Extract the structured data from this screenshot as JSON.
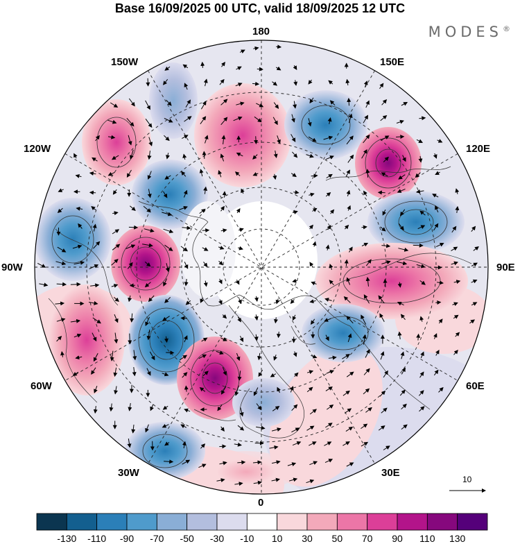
{
  "title": "Base 16/09/2025 00 UTC, valid 18/09/2025 12 UTC",
  "brand": "MODES",
  "brand_mark": "®",
  "meridian_labels": {
    "lon_180": "180",
    "lon_150w": "150W",
    "lon_150e": "150E",
    "lon_120w": "120W",
    "lon_120e": "120E",
    "lon_90w": "90W",
    "lon_90e": "90E",
    "lon_60w": "60W",
    "lon_60e": "60E",
    "lon_30w": "30W",
    "lon_30e": "30E",
    "lon_0": "0"
  },
  "reference_vector": {
    "value": "10"
  },
  "colorbar": {
    "ticks": [
      "-130",
      "-110",
      "-90",
      "-70",
      "-50",
      "-30",
      "-10",
      "10",
      "30",
      "50",
      "70",
      "90",
      "110",
      "130"
    ],
    "colors": [
      "#0b3550",
      "#135f8f",
      "#2b7fb8",
      "#4f9bcc",
      "#8aaed6",
      "#b3bede",
      "#dcdcee",
      "#ffffff",
      "#f9d8dc",
      "#f3a9ba",
      "#ec76a7",
      "#dc3f98",
      "#b3148a",
      "#86087d",
      "#55007a"
    ]
  },
  "map_data": {
    "projection": "north polar stereographic",
    "field": "anomaly with wind vectors",
    "anomaly_centers": [
      {
        "lon": "150W",
        "sign": "positive",
        "peak": 70
      },
      {
        "lon": "160W",
        "sign": "negative",
        "peak": -50
      },
      {
        "lon": "170E",
        "sign": "positive",
        "peak": 70
      },
      {
        "lon": "150E",
        "sign": "negative",
        "peak": -70
      },
      {
        "lon": "130E",
        "sign": "positive",
        "peak": 90
      },
      {
        "lon": "110E",
        "sign": "negative",
        "peak": -90
      },
      {
        "lon": "90E",
        "sign": "positive",
        "peak": 70
      },
      {
        "lon": "60E",
        "sign": "negative",
        "peak": -70
      },
      {
        "lon": "120W",
        "sign": "negative",
        "peak": -70
      },
      {
        "lon": "100W",
        "sign": "negative",
        "peak": -90
      },
      {
        "lon": "85W",
        "sign": "positive",
        "peak": 110
      },
      {
        "lon": "65W",
        "sign": "positive",
        "peak": 70
      },
      {
        "lon": "55W",
        "sign": "negative",
        "peak": -110
      },
      {
        "lon": "40W",
        "sign": "positive",
        "peak": 110
      },
      {
        "lon": "30W",
        "sign": "negative",
        "peak": -90
      },
      {
        "lon": "20E",
        "sign": "positive",
        "peak": 50
      }
    ]
  }
}
